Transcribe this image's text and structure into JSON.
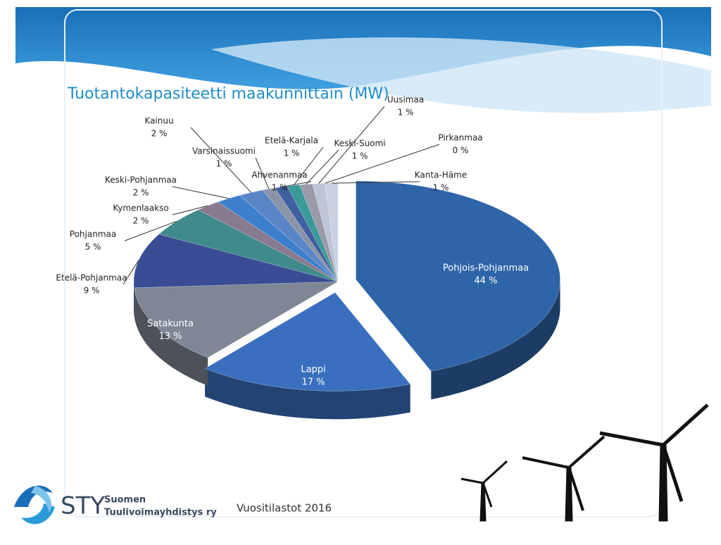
{
  "chart_data": {
    "type": "pie",
    "title": "Tuotantokapasiteetti maakunnittain (MW)",
    "categories": [
      "Pohjois-Pohjanmaa",
      "Lappi",
      "Satakunta",
      "Etelä-Pohjanmaa",
      "Pohjanmaa",
      "Kymenlaakso",
      "Keski-Pohjanmaa",
      "Kainuu",
      "Varsinaissuomi",
      "Ahvenanmaa",
      "Etelä-Karjala",
      "Keski-Suomi",
      "Uusimaa",
      "Pirkanmaa",
      "Kanta-Häme"
    ],
    "values": [
      44,
      17,
      13,
      9,
      5,
      2,
      2,
      2,
      1,
      1,
      1,
      1,
      1,
      0,
      1
    ],
    "value_labels": [
      "44 %",
      "17 %",
      "13 %",
      "9 %",
      "5 %",
      "2 %",
      "2 %",
      "2 %",
      "1 %",
      "1 %",
      "1 %",
      "1 %",
      "1 %",
      "0 %",
      "1 %"
    ],
    "colors": [
      "#2e64a8",
      "#3a6fbf",
      "#7f8796",
      "#3a4d94",
      "#3f8a8a",
      "#8a7a8f",
      "#3c7fcc",
      "#5a86c6",
      "#8a93a8",
      "#3f5fa0",
      "#3a9a9a",
      "#9a9aa8",
      "#bcc6d6",
      "#8ea8c8",
      "#c8d2e0"
    ]
  },
  "footer": {
    "logo_text": "STY",
    "org_line1": "Suomen",
    "org_line2": "Tuulivoimayhdistys ry",
    "caption": "Vuositilastot 2016"
  }
}
